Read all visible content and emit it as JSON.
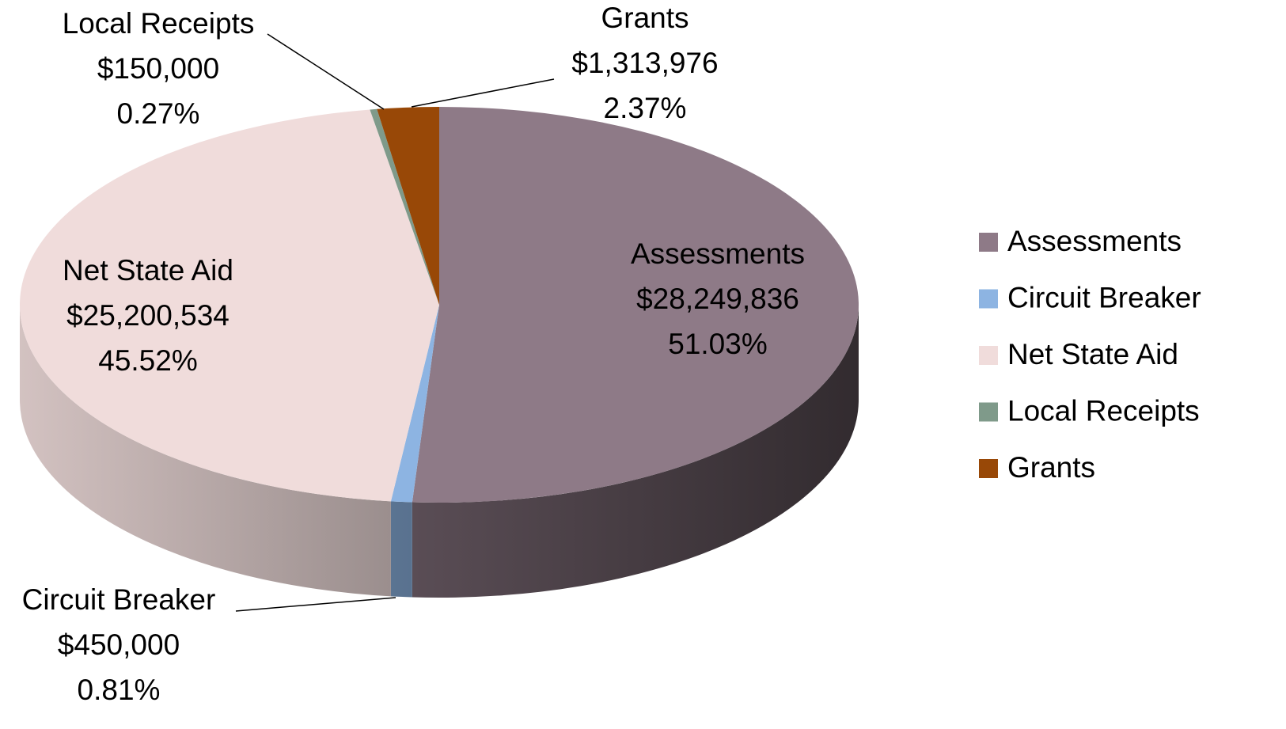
{
  "chart_data": {
    "type": "pie3d",
    "categories": [
      "Assessments",
      "Circuit Breaker",
      "Net State Aid",
      "Local Receipts",
      "Grants"
    ],
    "values": [
      28249836,
      450000,
      25200534,
      150000,
      1313976
    ],
    "value_labels": [
      "$28,249,836",
      "$450,000",
      "$25,200,534",
      "$150,000",
      "$1,313,976"
    ],
    "percent_labels": [
      "51.03%",
      "0.81%",
      "45.52%",
      "0.27%",
      "2.37%"
    ],
    "colors": [
      "#8e7a87",
      "#8db4e2",
      "#f0dcdb",
      "#7f9a8a",
      "#984807"
    ],
    "legend": "right"
  }
}
